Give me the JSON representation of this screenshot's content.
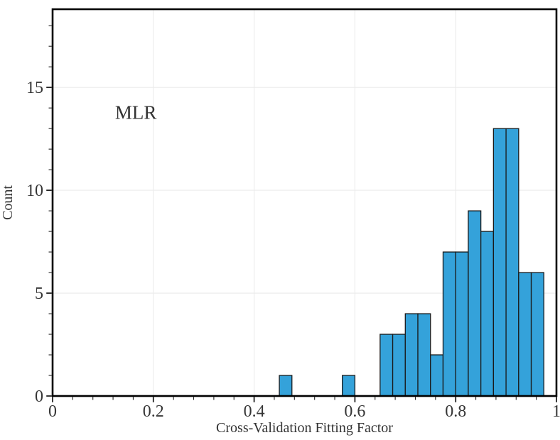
{
  "chart_data": {
    "type": "bar",
    "subtype": "histogram",
    "title": "",
    "xlabel": "Cross-Validation Fitting Factor",
    "ylabel": "Count",
    "annotation": {
      "text": "MLR",
      "x": 0.124,
      "y": 14.2
    },
    "xlim": [
      0,
      1
    ],
    "ylim": [
      0,
      18.8
    ],
    "x_major_ticks": [
      0,
      0.2,
      0.4,
      0.6,
      0.8,
      1
    ],
    "x_major_labels": [
      "0",
      "0.2",
      "0.4",
      "0.6",
      "0.8",
      "1"
    ],
    "x_minor_step": 0.04,
    "y_major_ticks": [
      0,
      5,
      10,
      15
    ],
    "y_major_labels": [
      "0",
      "5",
      "10",
      "15"
    ],
    "y_minor_step": 1,
    "grid": true,
    "legend": null,
    "bin_width": 0.025,
    "bars": [
      {
        "x0": 0.45,
        "x1": 0.475,
        "count": 1
      },
      {
        "x0": 0.575,
        "x1": 0.6,
        "count": 1
      },
      {
        "x0": 0.65,
        "x1": 0.675,
        "count": 3
      },
      {
        "x0": 0.675,
        "x1": 0.7,
        "count": 3
      },
      {
        "x0": 0.7,
        "x1": 0.725,
        "count": 4
      },
      {
        "x0": 0.725,
        "x1": 0.75,
        "count": 4
      },
      {
        "x0": 0.75,
        "x1": 0.775,
        "count": 2
      },
      {
        "x0": 0.775,
        "x1": 0.8,
        "count": 7
      },
      {
        "x0": 0.8,
        "x1": 0.825,
        "count": 7
      },
      {
        "x0": 0.825,
        "x1": 0.85,
        "count": 9
      },
      {
        "x0": 0.85,
        "x1": 0.875,
        "count": 8
      },
      {
        "x0": 0.875,
        "x1": 0.9,
        "count": 13
      },
      {
        "x0": 0.9,
        "x1": 0.925,
        "count": 13
      },
      {
        "x0": 0.925,
        "x1": 0.95,
        "count": 6
      },
      {
        "x0": 0.95,
        "x1": 0.975,
        "count": 6
      }
    ],
    "colors": {
      "bar_fill": "#34a2da",
      "bar_edge": "#1a1a1a",
      "grid": "#ebebeb",
      "spine": "#000000",
      "tick": "#222222",
      "tick_text": "#363636",
      "background": "#ffffff"
    }
  }
}
